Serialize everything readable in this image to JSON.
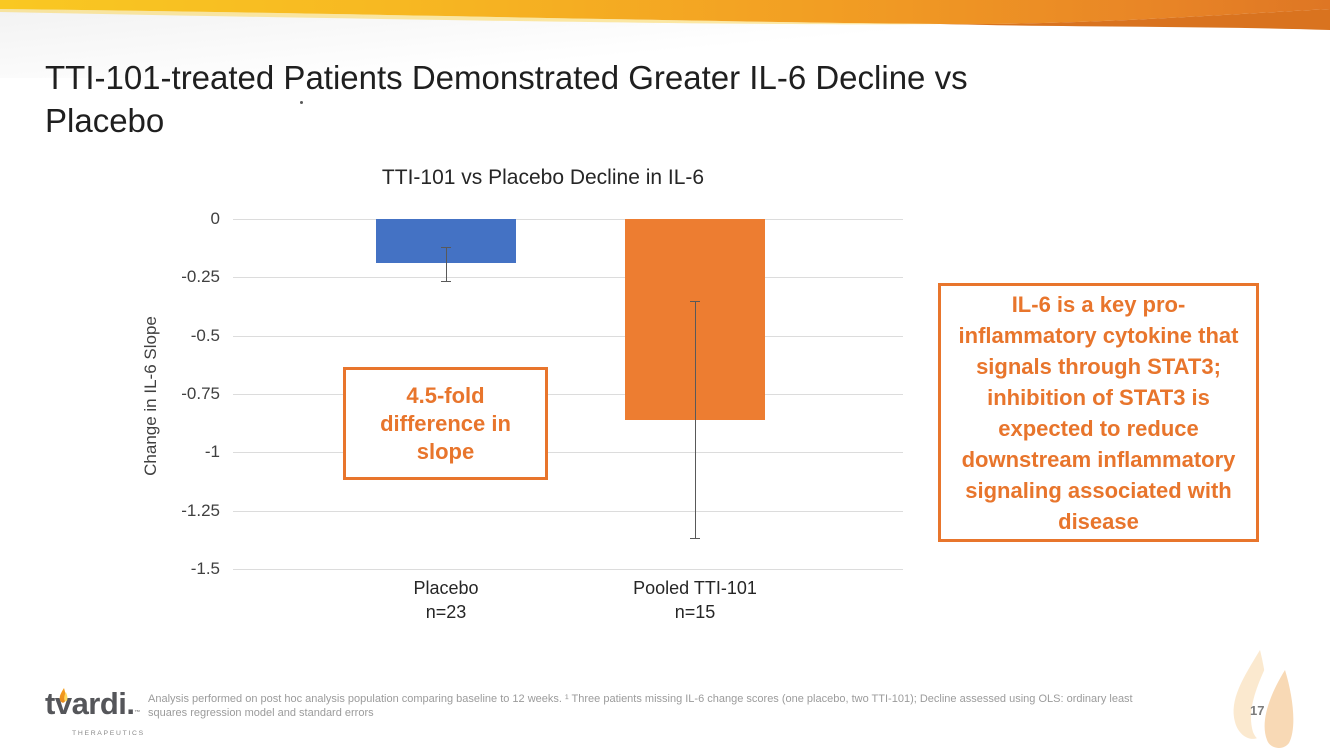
{
  "slide": {
    "title_line1": "TTI-101-treated Patients Demonstrated Greater IL-6 Decline vs",
    "title_line2": "Placebo",
    "page_number": "17",
    "footnote": "Analysis performed on post hoc analysis population comparing baseline to 12 weeks. ¹ Three patients missing IL-6 change scores (one placebo, two TTI-101); Decline assessed using OLS: ordinary least squares regression model and standard errors"
  },
  "logo": {
    "wordmark": "tvardi.",
    "trademark": "™",
    "subtext": "THERAPEUTICS"
  },
  "annotations": {
    "fold_box": "4.5-fold difference in slope",
    "il6_note": "IL-6 is a key pro-inflammatory cytokine that signals through STAT3; inhibition of STAT3 is expected to reduce downstream inflammatory signaling associated with disease"
  },
  "colors": {
    "placebo_bar": "#4472C4",
    "tti101_bar": "#ED7D31",
    "annotation_orange": "#E8752C",
    "gridline": "#DCDCDC",
    "error_bar": "#595959",
    "banner_yellow": "#F9C822",
    "banner_orange": "#E07A24"
  },
  "icons": {
    "logo_flame": "flame-icon",
    "watermark": "flame-watermark-icon"
  },
  "chart_data": {
    "type": "bar",
    "title": "TTI-101 vs Placebo Decline in IL-6",
    "xlabel": "",
    "ylabel": "Change in IL-6 Slope",
    "ylim": [
      -1.5,
      0
    ],
    "yticks": [
      "0",
      "-0.25",
      "-0.5",
      "-0.75",
      "-1",
      "-1.25",
      "-1.5"
    ],
    "grid": true,
    "legend": "none",
    "categories": [
      "Placebo",
      "Pooled TTI-101"
    ],
    "category_sublabels": [
      "n=23",
      "n=15"
    ],
    "series": [
      {
        "name": "Change in IL-6 Slope",
        "values": [
          -0.19,
          -0.86
        ]
      }
    ],
    "error_bars": [
      {
        "high": -0.12,
        "low": -0.27
      },
      {
        "high": -0.35,
        "low": -1.37
      }
    ],
    "bar_colors": [
      "#4472C4",
      "#ED7D31"
    ]
  }
}
